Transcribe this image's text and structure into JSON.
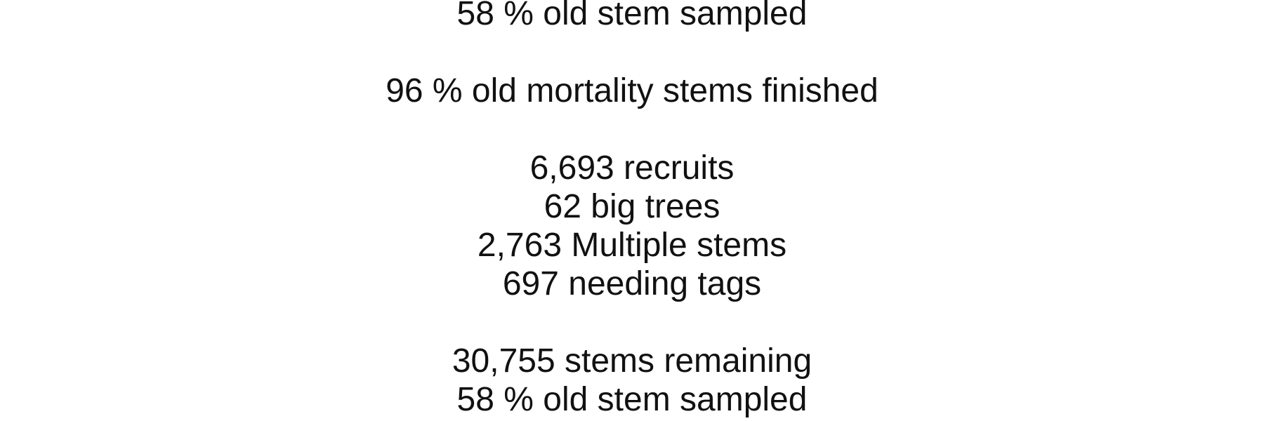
{
  "status_lines": {
    "top_sampled": "58 % old stem sampled",
    "mortality_finished": "96 % old mortality stems finished",
    "recruits": "6,693 recruits",
    "big_trees": "62 big trees",
    "multiple_stems": "2,763 Multiple stems",
    "needing_tags": "697 needing tags",
    "stems_remaining": "30,755 stems remaining",
    "bottom_sampled": "58 % old stem sampled"
  }
}
